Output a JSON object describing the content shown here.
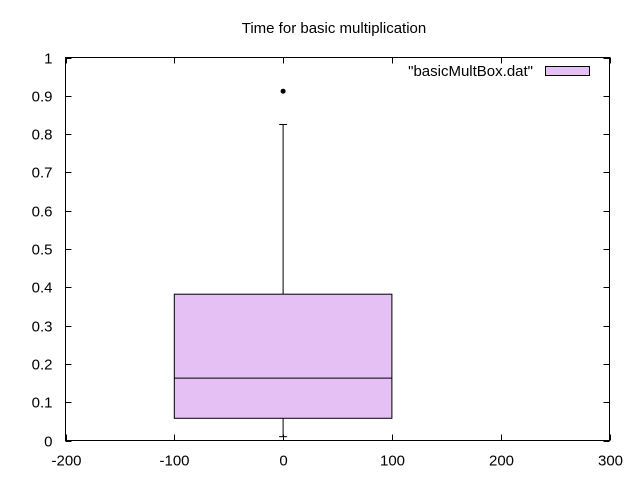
{
  "chart_data": {
    "type": "box",
    "title": "Time for basic multiplication",
    "xlabel": "",
    "ylabel": "",
    "xlim": [
      -200,
      300
    ],
    "ylim": [
      0,
      1
    ],
    "x_ticks": [
      -200,
      -100,
      0,
      100,
      200,
      300
    ],
    "y_ticks": [
      0,
      0.1,
      0.2,
      0.3,
      0.4,
      0.5,
      0.6,
      0.7,
      0.8,
      0.9,
      1
    ],
    "grid": false,
    "legend_position": "top-right",
    "series": [
      {
        "name": "\"basicMultBox.dat\"",
        "color": "#e4c0f4",
        "x": 0,
        "box_left": -100,
        "box_right": 100,
        "whisker_low": 0.01,
        "q1": 0.058,
        "median": 0.163,
        "q3": 0.382,
        "whisker_high": 0.825,
        "outliers": [
          0.912
        ]
      }
    ]
  }
}
